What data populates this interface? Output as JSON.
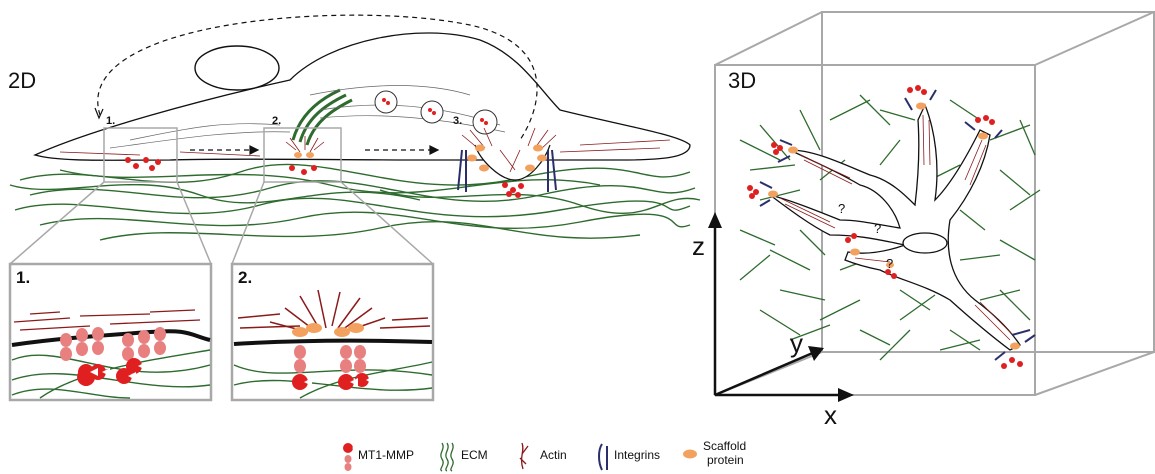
{
  "panel_2d": {
    "label": "2D",
    "steps": [
      "1.",
      "2.",
      "3."
    ],
    "inset_1_label": "1.",
    "inset_2_label": "2."
  },
  "panel_3d": {
    "label": "3D",
    "axes": {
      "z": "z",
      "y": "y",
      "x": "x"
    },
    "question_marks": [
      "?",
      "?",
      "?"
    ]
  },
  "legend": {
    "items": [
      {
        "icon": "mt1-mmp-icon",
        "label": "MT1-MMP"
      },
      {
        "icon": "ecm-icon",
        "label": "ECM"
      },
      {
        "icon": "actin-icon",
        "label": "Actin"
      },
      {
        "icon": "integrins-icon",
        "label": "Integrins"
      },
      {
        "icon": "scaffold-protein-icon",
        "label_line1": "Scaffold",
        "label_line2": "protein"
      }
    ]
  },
  "colors": {
    "ecm": "#2e6b2e",
    "actin": "#8b1a1a",
    "mmp": "#e02020",
    "mmp_stem": "#e88080",
    "integrin": "#2a2f6b",
    "scaffold": "#f2a25e",
    "box": "#a8a8a8"
  }
}
